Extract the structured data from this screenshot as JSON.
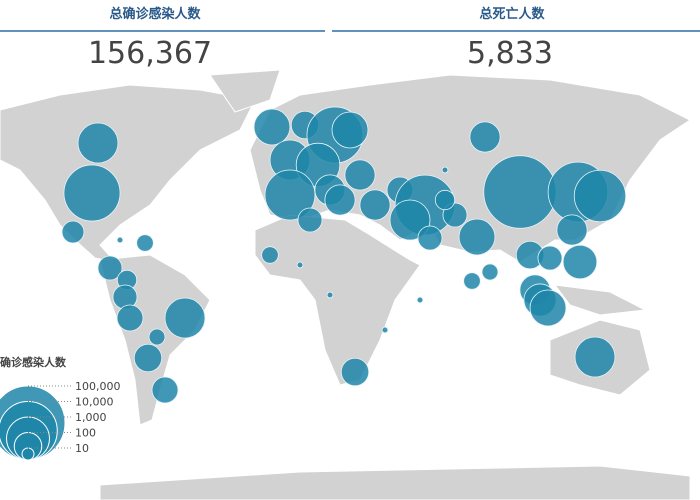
{
  "header": {
    "confirmed_title": "总确诊感染人数",
    "confirmed_value": {
      "value": 156367,
      "label": "156,367"
    },
    "deaths_title": "总死亡人数",
    "deaths_value": {
      "value": 5833,
      "label": "5,833"
    }
  },
  "legend": {
    "title": "确诊感染人数",
    "ticks": [
      {
        "value": 100000,
        "label": "100,000"
      },
      {
        "value": 10000,
        "label": "10,000"
      },
      {
        "value": 1000,
        "label": "1,000"
      },
      100,
      10
    ]
  },
  "bubbles": [
    640,
    7000,
    44,
    20,
    60,
    30,
    60,
    80,
    640,
    18,
    100,
    80,
    350,
    100,
    7000,
    350,
    640,
    1100,
    2800,
    150,
    150,
    60,
    150,
    150,
    80,
    150,
    12000,
    640,
    60,
    60,
    30,
    80000,
    12000,
    3500,
    150,
    350,
    18,
    20,
    100,
    60,
    250,
    150,
    200,
    350,
    640,
    20,
    100,
    4,
    4,
    4,
    4,
    4,
    4
  ]
}
